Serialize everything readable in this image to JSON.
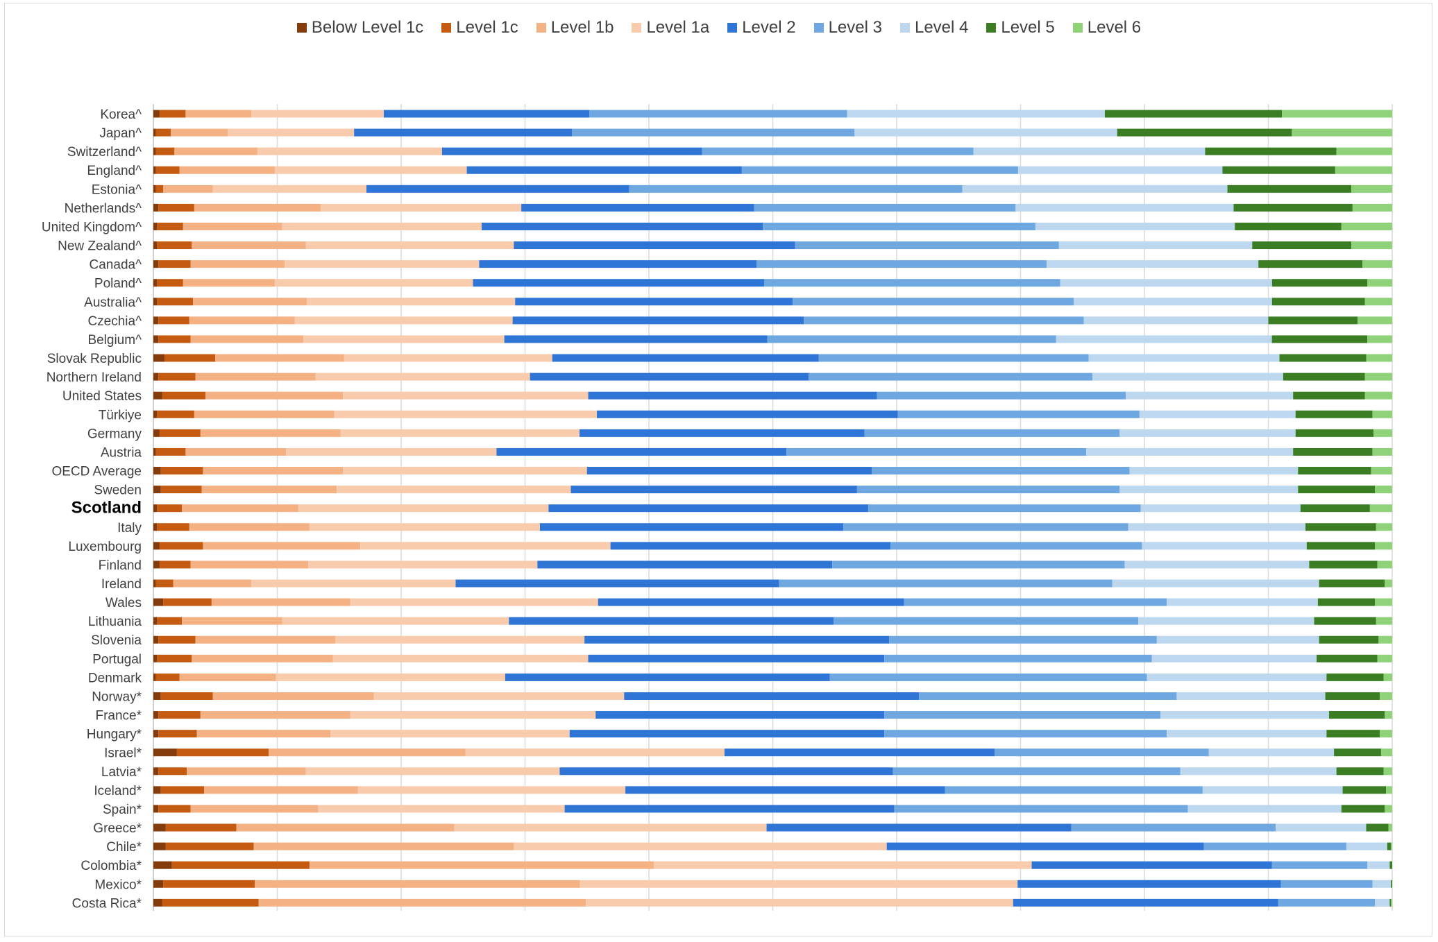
{
  "chart_data": {
    "type": "bar",
    "orientation": "horizontal",
    "stacked": true,
    "percent_stacked": true,
    "title": "",
    "xlabel": "",
    "ylabel": "",
    "xlim": [
      0,
      100
    ],
    "grid": true,
    "legend_position": "top",
    "highlight_category": "Scotland",
    "categories": [
      "Korea^",
      "Japan^",
      "Switzerland^",
      "England^",
      "Estonia^",
      "Netherlands^",
      "United Kingdom^",
      "New Zealand^",
      "Canada^",
      "Poland^",
      "Australia^",
      "Czechia^",
      "Belgium^",
      "Slovak Republic",
      "Northern Ireland",
      "United States",
      "Türkiye",
      "Germany",
      "Austria",
      "OECD Average",
      "Sweden",
      "Scotland",
      "Italy",
      "Luxembourg",
      "Finland",
      "Ireland",
      "Wales",
      "Lithuania",
      "Slovenia",
      "Portugal",
      "Denmark",
      "Norway*",
      "France*",
      "Hungary*",
      "Israel*",
      "Latvia*",
      "Iceland*",
      "Spain*",
      "Greece*",
      "Chile*",
      "Colombia*",
      "Mexico*",
      "Costa Rica*"
    ],
    "series": [
      {
        "name": "Below Level 1c",
        "color": "#843c0c",
        "values": [
          0.5,
          0.2,
          0.2,
          0.2,
          0.2,
          0.4,
          0.3,
          0.3,
          0.4,
          0.3,
          0.3,
          0.4,
          0.4,
          0.9,
          0.4,
          0.7,
          0.3,
          0.5,
          0.2,
          0.6,
          0.6,
          0.3,
          0.3,
          0.5,
          0.5,
          0.2,
          0.8,
          0.3,
          0.4,
          0.3,
          0.2,
          0.6,
          0.4,
          0.4,
          1.9,
          0.4,
          0.6,
          0.4,
          1.0,
          1.0,
          1.5,
          0.8,
          0.7
        ]
      },
      {
        "name": "Level 1c",
        "color": "#c55a11",
        "values": [
          2.1,
          1.2,
          1.5,
          1.9,
          0.6,
          2.9,
          2.1,
          2.8,
          2.6,
          2.1,
          2.9,
          2.5,
          2.6,
          4.1,
          3.0,
          3.5,
          3.0,
          3.3,
          2.4,
          3.4,
          3.3,
          2.0,
          2.6,
          3.5,
          2.5,
          1.4,
          3.9,
          2.0,
          3.0,
          2.8,
          1.9,
          4.2,
          3.4,
          3.1,
          7.4,
          2.3,
          3.5,
          2.6,
          5.7,
          7.1,
          11.1,
          7.4,
          7.8
        ]
      },
      {
        "name": "Level 1b",
        "color": "#f4b183",
        "values": [
          5.3,
          4.6,
          6.7,
          7.7,
          4.0,
          10.2,
          8.0,
          9.2,
          7.6,
          7.4,
          9.2,
          8.5,
          9.1,
          10.4,
          9.7,
          11.1,
          11.3,
          11.3,
          8.1,
          11.3,
          10.9,
          9.4,
          9.7,
          12.7,
          9.5,
          6.3,
          11.2,
          8.1,
          11.3,
          11.4,
          7.8,
          13.0,
          12.1,
          10.8,
          15.9,
          9.6,
          12.4,
          10.3,
          17.6,
          21.0,
          27.8,
          26.3,
          26.4
        ]
      },
      {
        "name": "Level 1a",
        "color": "#f8cbad",
        "values": [
          10.7,
          10.2,
          14.9,
          15.5,
          12.4,
          16.2,
          16.1,
          16.8,
          15.7,
          16.0,
          16.8,
          17.6,
          16.2,
          16.8,
          17.3,
          19.8,
          21.2,
          19.3,
          17.0,
          19.7,
          18.9,
          20.2,
          18.6,
          20.2,
          18.5,
          16.5,
          20.0,
          18.3,
          20.1,
          20.6,
          18.5,
          20.2,
          19.8,
          19.3,
          20.9,
          20.5,
          21.6,
          19.9,
          25.2,
          30.1,
          30.5,
          35.4,
          34.5
        ]
      },
      {
        "name": "Level 2",
        "color": "#2e75d6",
        "values": [
          16.6,
          17.6,
          21.0,
          22.2,
          21.2,
          18.8,
          22.7,
          22.7,
          22.4,
          23.5,
          22.4,
          23.5,
          21.2,
          21.5,
          22.5,
          23.3,
          24.3,
          23.0,
          23.4,
          23.0,
          23.1,
          25.8,
          24.5,
          22.6,
          23.8,
          26.1,
          24.7,
          26.2,
          24.6,
          23.9,
          26.2,
          23.8,
          23.3,
          25.4,
          21.8,
          26.9,
          25.8,
          26.6,
          24.6,
          25.6,
          19.4,
          21.3,
          21.4
        ]
      },
      {
        "name": "Level 3",
        "color": "#6fa8e0",
        "values": [
          20.8,
          22.8,
          21.9,
          22.3,
          26.9,
          21.1,
          22.0,
          21.3,
          23.4,
          23.9,
          22.7,
          22.6,
          23.3,
          21.8,
          22.9,
          20.1,
          19.5,
          20.6,
          24.2,
          20.8,
          21.2,
          22.0,
          23.0,
          20.3,
          23.6,
          26.9,
          21.2,
          24.6,
          21.6,
          21.6,
          25.6,
          20.8,
          22.3,
          22.8,
          17.3,
          23.2,
          20.8,
          23.7,
          16.5,
          11.5,
          7.7,
          7.4,
          7.8
        ]
      },
      {
        "name": "Level 4",
        "color": "#bdd7ee",
        "values": [
          20.8,
          21.2,
          18.7,
          16.5,
          21.4,
          17.6,
          16.1,
          15.6,
          17.1,
          17.1,
          16.0,
          14.9,
          17.4,
          15.4,
          15.4,
          13.5,
          12.6,
          14.2,
          16.7,
          13.6,
          14.4,
          12.9,
          14.3,
          13.3,
          14.9,
          16.7,
          12.2,
          14.2,
          13.1,
          13.3,
          14.5,
          12.0,
          13.6,
          12.9,
          10.1,
          12.6,
          11.3,
          12.4,
          7.3,
          3.3,
          1.8,
          1.5,
          1.2
        ]
      },
      {
        "name": "Level 5",
        "color": "#3a7d22",
        "values": [
          14.3,
          14.1,
          10.6,
          9.1,
          10.0,
          9.6,
          8.6,
          8.0,
          8.4,
          7.7,
          7.5,
          7.2,
          7.7,
          7.0,
          6.6,
          5.8,
          6.2,
          6.3,
          6.4,
          5.9,
          6.2,
          5.6,
          5.7,
          5.5,
          5.5,
          5.3,
          4.6,
          5.0,
          4.8,
          4.9,
          4.6,
          4.4,
          4.5,
          4.3,
          3.8,
          3.8,
          3.5,
          3.5,
          1.8,
          0.3,
          0.2,
          0.1,
          0.1
        ]
      },
      {
        "name": "Level 6",
        "color": "#8fd27a",
        "values": [
          8.9,
          8.1,
          4.5,
          4.6,
          3.3,
          3.2,
          4.1,
          3.3,
          2.4,
          2.0,
          2.2,
          2.8,
          2.0,
          2.1,
          2.2,
          2.2,
          1.6,
          1.5,
          1.6,
          1.7,
          1.4,
          1.8,
          1.3,
          1.4,
          1.2,
          0.6,
          1.4,
          1.3,
          1.1,
          1.2,
          0.7,
          1.0,
          0.6,
          1.0,
          0.9,
          0.7,
          0.5,
          0.6,
          0.3,
          0.1,
          0.0,
          0.0,
          0.1
        ]
      }
    ]
  }
}
